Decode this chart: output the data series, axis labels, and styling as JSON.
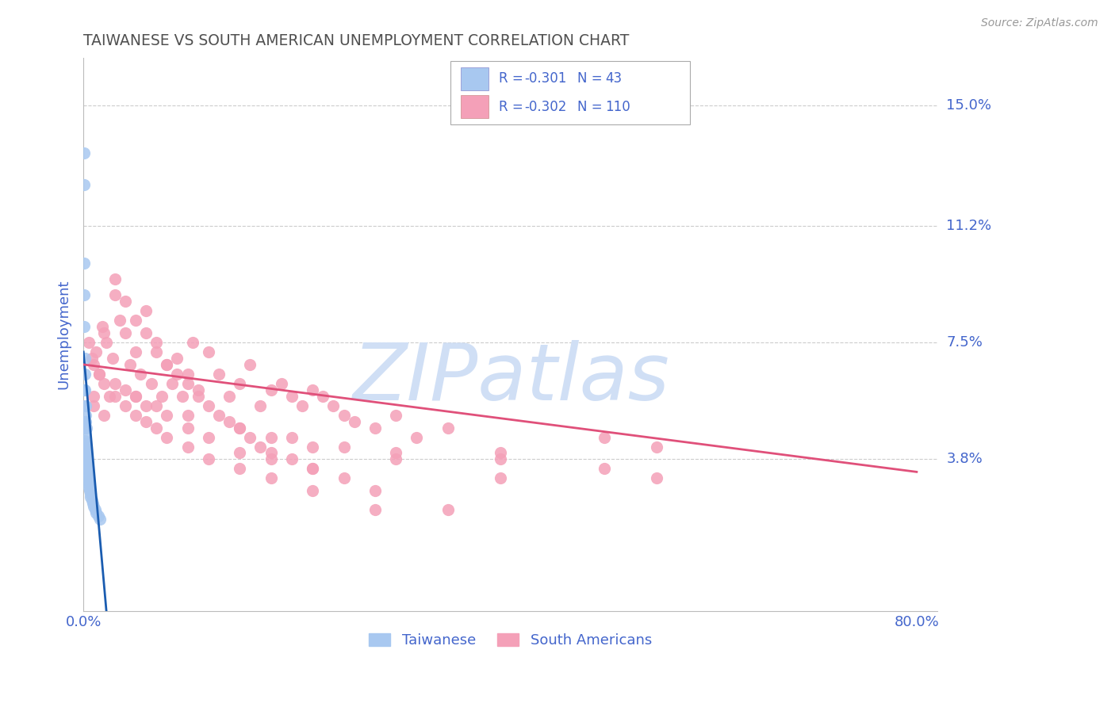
{
  "title": "TAIWANESE VS SOUTH AMERICAN UNEMPLOYMENT CORRELATION CHART",
  "source_text": "Source: ZipAtlas.com",
  "ylabel": "Unemployment",
  "y_ticks": [
    0.038,
    0.075,
    0.112,
    0.15
  ],
  "y_tick_labels": [
    "3.8%",
    "7.5%",
    "11.2%",
    "15.0%"
  ],
  "x_ticks": [
    0.0,
    20.0,
    40.0,
    60.0,
    80.0
  ],
  "x_tick_labels": [
    "0.0%",
    "",
    "",
    "",
    "80.0%"
  ],
  "xlim": [
    0.0,
    82.0
  ],
  "ylim": [
    -0.01,
    0.165
  ],
  "taiwanese_scatter_color": "#a8c8f0",
  "south_american_scatter_color": "#f4a0b8",
  "taiwanese_line_color": "#1a5cb0",
  "south_american_line_color": "#e0507a",
  "watermark": "ZIPatlas",
  "watermark_color": "#d0dff5",
  "background_color": "#ffffff",
  "grid_color": "#cccccc",
  "title_color": "#505050",
  "tick_label_color": "#4466cc",
  "axis_label_color": "#4466cc",
  "legend_R_color": "#4466cc",
  "legend_N_color": "#4466cc",
  "taiwanese_scatter_x": [
    0.05,
    0.05,
    0.08,
    0.1,
    0.1,
    0.12,
    0.15,
    0.15,
    0.18,
    0.2,
    0.2,
    0.22,
    0.25,
    0.28,
    0.3,
    0.3,
    0.35,
    0.4,
    0.4,
    0.45,
    0.5,
    0.5,
    0.55,
    0.6,
    0.65,
    0.7,
    0.8,
    0.9,
    1.0,
    1.1,
    1.2,
    1.4,
    1.6,
    0.05,
    0.06,
    0.08,
    0.1,
    0.12,
    0.15,
    0.18,
    0.2,
    0.25,
    0.3
  ],
  "taiwanese_scatter_y": [
    0.135,
    0.125,
    0.06,
    0.055,
    0.05,
    0.048,
    0.046,
    0.044,
    0.043,
    0.042,
    0.041,
    0.04,
    0.039,
    0.038,
    0.037,
    0.036,
    0.035,
    0.034,
    0.033,
    0.032,
    0.031,
    0.03,
    0.029,
    0.028,
    0.027,
    0.026,
    0.025,
    0.024,
    0.023,
    0.022,
    0.021,
    0.02,
    0.019,
    0.1,
    0.09,
    0.08,
    0.07,
    0.065,
    0.06,
    0.055,
    0.052,
    0.05,
    0.048
  ],
  "south_american_scatter_x": [
    0.5,
    0.8,
    1.0,
    1.2,
    1.5,
    1.8,
    2.0,
    2.2,
    2.5,
    2.8,
    3.0,
    3.5,
    4.0,
    4.5,
    5.0,
    5.5,
    6.0,
    6.5,
    7.0,
    7.5,
    8.0,
    8.5,
    9.0,
    9.5,
    10.0,
    10.5,
    11.0,
    12.0,
    13.0,
    14.0,
    15.0,
    16.0,
    17.0,
    18.0,
    19.0,
    20.0,
    21.0,
    22.0,
    23.0,
    24.0,
    25.0,
    26.0,
    28.0,
    30.0,
    32.0,
    35.0,
    40.0,
    50.0,
    55.0,
    1.0,
    1.5,
    2.0,
    3.0,
    4.0,
    5.0,
    6.0,
    7.0,
    8.0,
    9.0,
    10.0,
    11.0,
    12.0,
    13.0,
    14.0,
    15.0,
    16.0,
    17.0,
    18.0,
    20.0,
    22.0,
    25.0,
    1.0,
    2.0,
    3.0,
    4.0,
    5.0,
    6.0,
    7.0,
    8.0,
    10.0,
    12.0,
    15.0,
    18.0,
    22.0,
    28.0,
    4.0,
    5.0,
    6.0,
    8.0,
    10.0,
    12.0,
    15.0,
    18.0,
    22.0,
    28.0,
    35.0,
    3.0,
    5.0,
    7.0,
    10.0,
    15.0,
    20.0,
    25.0,
    30.0,
    40.0,
    18.0,
    22.0,
    30.0,
    40.0,
    50.0,
    55.0
  ],
  "south_american_scatter_y": [
    0.075,
    0.07,
    0.068,
    0.072,
    0.065,
    0.08,
    0.062,
    0.075,
    0.058,
    0.07,
    0.09,
    0.082,
    0.078,
    0.068,
    0.072,
    0.065,
    0.085,
    0.062,
    0.075,
    0.058,
    0.068,
    0.062,
    0.07,
    0.058,
    0.065,
    0.075,
    0.06,
    0.072,
    0.065,
    0.058,
    0.062,
    0.068,
    0.055,
    0.06,
    0.062,
    0.058,
    0.055,
    0.06,
    0.058,
    0.055,
    0.052,
    0.05,
    0.048,
    0.052,
    0.045,
    0.048,
    0.04,
    0.045,
    0.042,
    0.058,
    0.065,
    0.078,
    0.095,
    0.088,
    0.082,
    0.078,
    0.072,
    0.068,
    0.065,
    0.062,
    0.058,
    0.055,
    0.052,
    0.05,
    0.048,
    0.045,
    0.042,
    0.04,
    0.038,
    0.035,
    0.032,
    0.055,
    0.052,
    0.058,
    0.055,
    0.052,
    0.05,
    0.048,
    0.045,
    0.042,
    0.038,
    0.035,
    0.032,
    0.028,
    0.022,
    0.06,
    0.058,
    0.055,
    0.052,
    0.048,
    0.045,
    0.04,
    0.038,
    0.035,
    0.028,
    0.022,
    0.062,
    0.058,
    0.055,
    0.052,
    0.048,
    0.045,
    0.042,
    0.038,
    0.032,
    0.045,
    0.042,
    0.04,
    0.038,
    0.035,
    0.032
  ],
  "taiwanese_line_x0": 0.0,
  "taiwanese_line_y0": 0.072,
  "taiwanese_line_x1": 2.2,
  "taiwanese_line_y1": -0.01,
  "south_american_line_x0": 0.0,
  "south_american_line_y0": 0.068,
  "south_american_line_x1": 80.0,
  "south_american_line_y1": 0.034
}
